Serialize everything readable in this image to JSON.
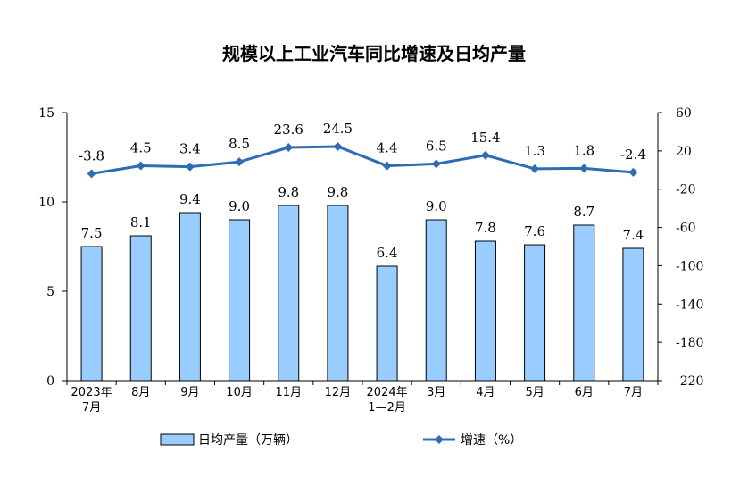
{
  "chart_data": {
    "type": "bar",
    "title": "规模以上工业汽车同比增速及日均产量",
    "categories": [
      [
        "2023年",
        "7月"
      ],
      [
        "8月"
      ],
      [
        "9月"
      ],
      [
        "10月"
      ],
      [
        "11月"
      ],
      [
        "12月"
      ],
      [
        "2024年",
        "1—2月"
      ],
      [
        "3月"
      ],
      [
        "4月"
      ],
      [
        "5月"
      ],
      [
        "6月"
      ],
      [
        "7月"
      ]
    ],
    "series": [
      {
        "name": "日均产量（万辆）",
        "type": "bar",
        "axis": "left",
        "color": "#99ccff",
        "values": [
          7.5,
          8.1,
          9.4,
          9.0,
          9.8,
          9.8,
          6.4,
          9.0,
          7.8,
          7.6,
          8.7,
          7.4
        ],
        "labels": [
          "7.5",
          "8.1",
          "9.4",
          "9.0",
          "9.8",
          "9.8",
          "6.4",
          "9.0",
          "7.8",
          "7.6",
          "8.7",
          "7.4"
        ]
      },
      {
        "name": "增速（%）",
        "type": "line",
        "axis": "right",
        "color": "#2e6db4",
        "values": [
          -3.8,
          4.5,
          3.4,
          8.5,
          23.6,
          24.5,
          4.4,
          6.5,
          15.4,
          1.3,
          1.8,
          -2.4
        ],
        "labels": [
          "-3.8",
          "4.5",
          "3.4",
          "8.5",
          "23.6",
          "24.5",
          "4.4",
          "6.5",
          "15.4",
          "1.3",
          "1.8",
          "-2.4"
        ]
      }
    ],
    "y_left": {
      "min": 0,
      "max": 15,
      "ticks": [
        "0",
        "5",
        "10",
        "15"
      ]
    },
    "y_right": {
      "min": -220,
      "max": 60,
      "ticks": [
        "-220",
        "-180",
        "-140",
        "-100",
        "-60",
        "-20",
        "20",
        "60"
      ]
    },
    "legend": {
      "position": "bottom"
    },
    "grid": false
  }
}
